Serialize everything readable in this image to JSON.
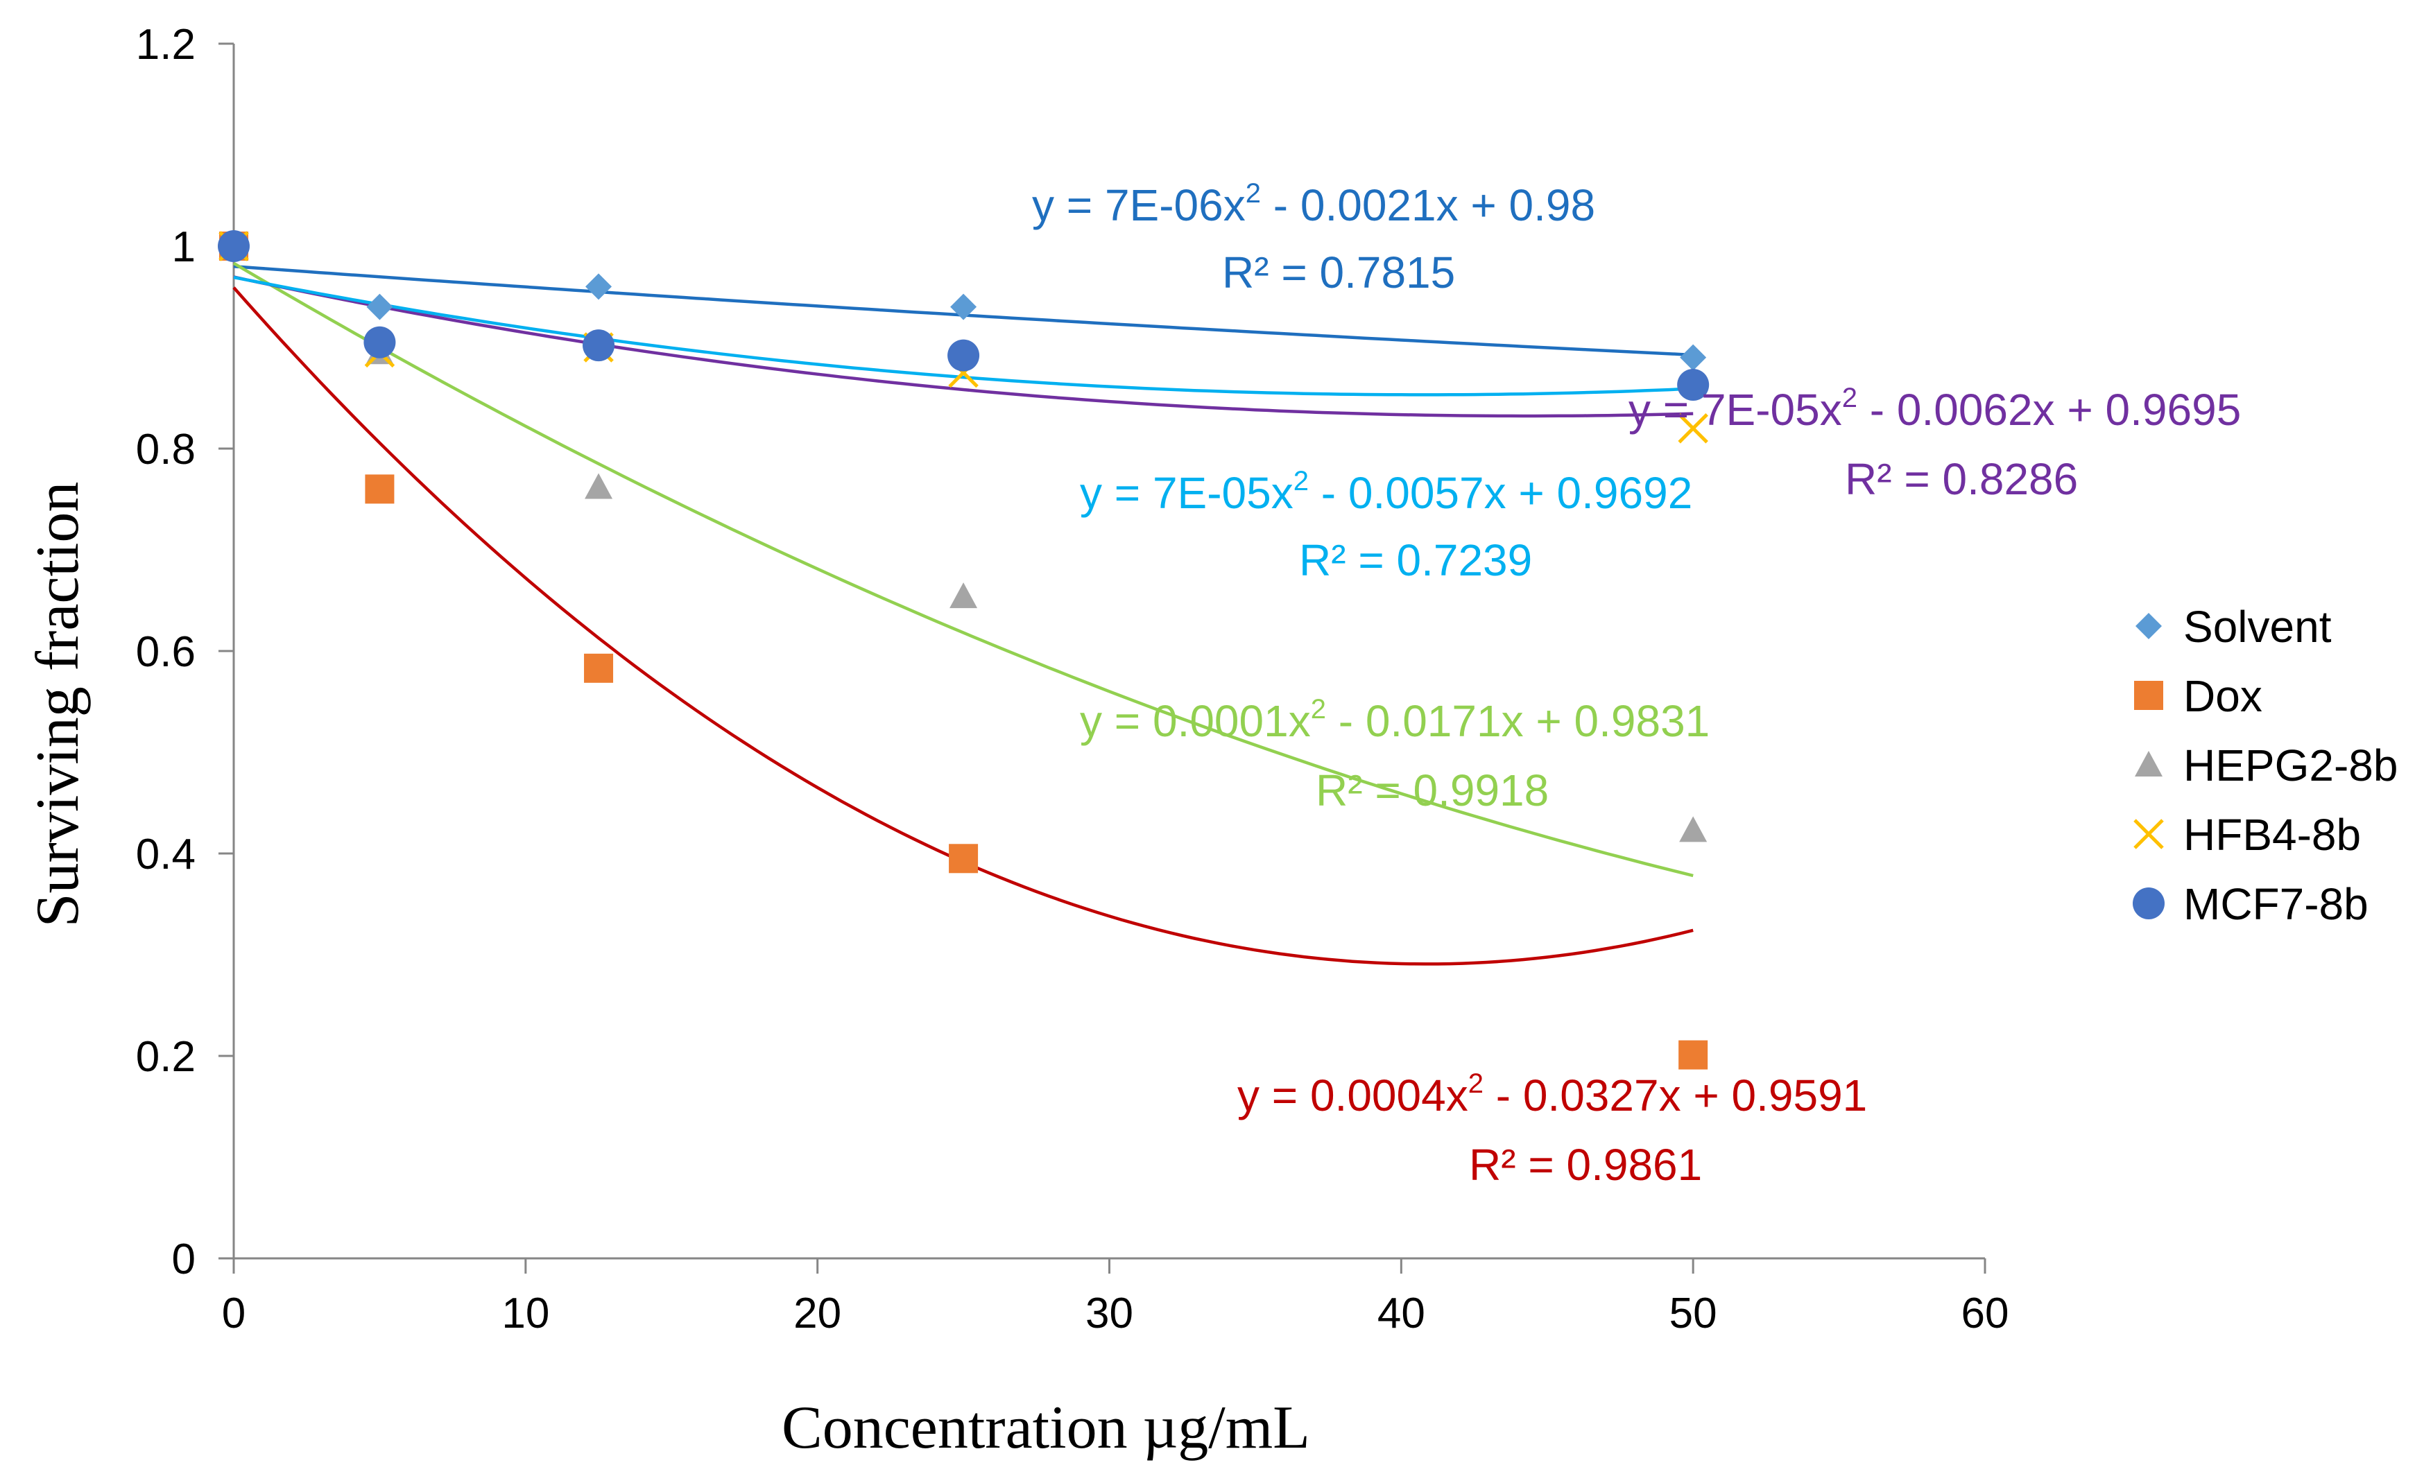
{
  "chart_data": {
    "type": "scatter",
    "title": "",
    "xlabel": "Concentration µg/mL",
    "ylabel": "Surviving  fraction",
    "xlim": [
      0,
      60
    ],
    "ylim": [
      0,
      1.2
    ],
    "xticks": [
      "0",
      "10",
      "20",
      "30",
      "40",
      "50",
      "60"
    ],
    "yticks": [
      "0",
      "0.2",
      "0.4",
      "0.6",
      "0.8",
      "1",
      "1.2"
    ],
    "grid": false,
    "legend_position": "right",
    "x": [
      0,
      5,
      12.5,
      25,
      50
    ],
    "series": [
      {
        "name": "Solvent",
        "marker": "diamond",
        "color": "#5B9BD5",
        "values": [
          1.0,
          0.94,
          0.96,
          0.94,
          0.89
        ],
        "trendline": {
          "type": "poly2",
          "a": 7e-06,
          "b": -0.0021,
          "c": 0.98,
          "color": "#1F6FBF",
          "x_range": [
            0,
            50
          ]
        }
      },
      {
        "name": "Dox",
        "marker": "square",
        "color": "#ED7D31",
        "values": [
          1.0,
          0.76,
          0.583,
          0.395,
          0.201
        ],
        "trendline": {
          "type": "poly2",
          "a": 0.0004,
          "b": -0.0327,
          "c": 0.9591,
          "color": "#C00000",
          "x_range": [
            0,
            50
          ]
        }
      },
      {
        "name": "HEPG2-8b",
        "marker": "triangle",
        "color": "#A5A5A5",
        "values": [
          1.0,
          0.895,
          0.762,
          0.654,
          0.423
        ],
        "trendline": {
          "type": "poly2",
          "a": 0.0001,
          "b": -0.0171,
          "c": 0.9831,
          "color": "#92D050",
          "x_range": [
            0,
            50
          ]
        }
      },
      {
        "name": "HFB4-8b",
        "marker": "x",
        "color": "#FFC000",
        "values": [
          1.0,
          0.895,
          0.9,
          0.875,
          0.82
        ],
        "trendline": {
          "type": "poly2",
          "a": 7e-05,
          "b": -0.0062,
          "c": 0.9695,
          "color": "#7030A0",
          "x_range": [
            0,
            50
          ]
        }
      },
      {
        "name": "MCF7-8b",
        "marker": "circle",
        "color": "#4472C4",
        "values": [
          1.0,
          0.905,
          0.902,
          0.892,
          0.863
        ],
        "trendline": {
          "type": "poly2",
          "a": 7e-05,
          "b": -0.0057,
          "c": 0.9692,
          "color": "#00B0F0",
          "x_range": [
            0,
            50
          ]
        }
      }
    ],
    "annotations": [
      {
        "eq": "y = 7E-06x",
        "sup": "2",
        "rest": " - 0.0021x + 0.98",
        "r2": "R² = 0.7815",
        "color": "#1F6FBF"
      },
      {
        "eq": "y = 7E-05x",
        "sup": "2",
        "rest": " - 0.0062x + 0.9695",
        "r2": "R² = 0.8286",
        "color": "#7030A0"
      },
      {
        "eq": "y = 7E-05x",
        "sup": "2",
        "rest": " - 0.0057x + 0.9692",
        "r2": "R² = 0.7239",
        "color": "#00B0F0"
      },
      {
        "eq": "y = 0.0001x",
        "sup": "2",
        "rest": " - 0.0171x + 0.9831",
        "r2": "R² = 0.9918",
        "color": "#92D050"
      },
      {
        "eq": "y = 0.0004x",
        "sup": "2",
        "rest": " - 0.0327x + 0.9591",
        "r2": "R² = 0.9861",
        "color": "#C00000"
      }
    ]
  }
}
